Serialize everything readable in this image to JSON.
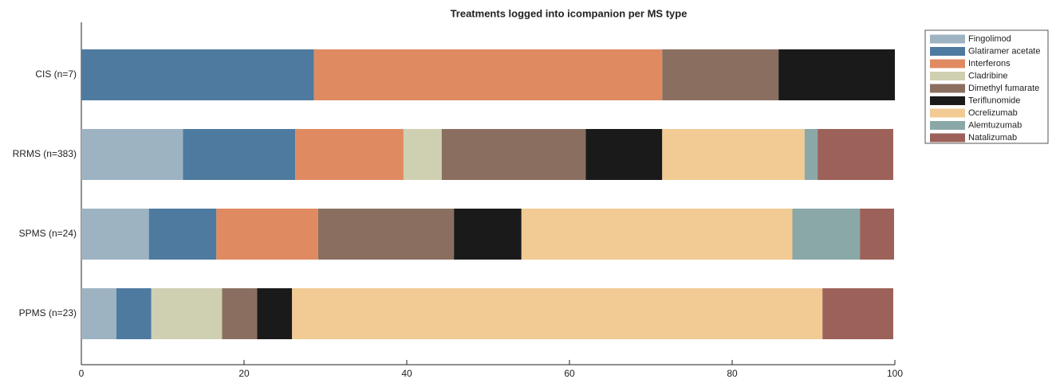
{
  "chart_data": {
    "type": "stacked-barh",
    "title": "Treatments logged into icompanion per MS type",
    "categories": [
      "CIS (n=7)",
      "RRMS (n=383)",
      "SPMS (n=24)",
      "PPMS (n=23)"
    ],
    "series": [
      {
        "name": "Fingolimod",
        "color": "#9db3c2",
        "values": [
          0,
          12.5,
          8.3,
          4.3
        ]
      },
      {
        "name": "Glatiramer acetate",
        "color": "#4e7aa0",
        "values": [
          28.6,
          13.8,
          8.3,
          4.3
        ]
      },
      {
        "name": "Interferons",
        "color": "#e08a62",
        "values": [
          42.8,
          13.3,
          12.5,
          0
        ]
      },
      {
        "name": "Cladribine",
        "color": "#cfcfb2",
        "values": [
          0,
          4.7,
          0,
          8.7
        ]
      },
      {
        "name": "Dimethyl fumarate",
        "color": "#8a6f60",
        "values": [
          14.3,
          17.7,
          16.7,
          4.3
        ]
      },
      {
        "name": "Teriflunomide",
        "color": "#1a1a1a",
        "values": [
          14.3,
          9.4,
          8.3,
          4.3
        ]
      },
      {
        "name": "Ocrelizumab",
        "color": "#f1cb93",
        "values": [
          0,
          17.5,
          33.3,
          65.2
        ]
      },
      {
        "name": "Alemtuzumab",
        "color": "#8aa8a8",
        "values": [
          0,
          1.6,
          8.3,
          0
        ]
      },
      {
        "name": "Natalizumab",
        "color": "#9c625a",
        "values": [
          0,
          9.3,
          4.2,
          8.7
        ]
      }
    ],
    "xlim": [
      0,
      100
    ],
    "xticks": [
      0,
      20,
      40,
      60,
      80,
      100
    ]
  }
}
